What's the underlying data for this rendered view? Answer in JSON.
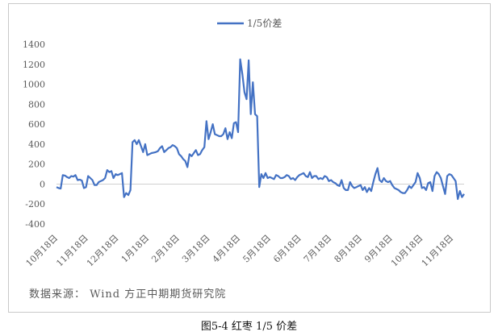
{
  "figure_caption": "图5-4 红枣 1/5 价差",
  "source_note": "数据来源： Wind 方正中期期货研究院",
  "chart_data": {
    "type": "line",
    "title": "",
    "xlabel": "",
    "ylabel": "",
    "ylim": [
      -400,
      1400
    ],
    "yticks": [
      -400,
      -200,
      0,
      200,
      400,
      600,
      800,
      1000,
      1200,
      1400
    ],
    "grid": false,
    "legend_position": "top-center",
    "xtick_labels": [
      "10月18日",
      "11月18日",
      "12月18日",
      "1月18日",
      "2月18日",
      "3月18日",
      "4月18日",
      "5月18日",
      "6月18日",
      "7月18日",
      "8月18日",
      "9月18日",
      "10月18日",
      "11月18日"
    ],
    "series": [
      {
        "name": "1/5价差",
        "color": "#4472C4",
        "values": [
          -30,
          -40,
          -45,
          90,
          85,
          70,
          60,
          80,
          75,
          90,
          40,
          45,
          35,
          -40,
          -30,
          80,
          60,
          40,
          -10,
          -10,
          20,
          30,
          40,
          60,
          140,
          120,
          130,
          60,
          100,
          90,
          100,
          110,
          -130,
          -90,
          -110,
          -60,
          420,
          440,
          400,
          440,
          380,
          320,
          400,
          290,
          300,
          310,
          315,
          320,
          330,
          360,
          380,
          320,
          340,
          360,
          370,
          390,
          380,
          360,
          300,
          280,
          250,
          230,
          170,
          300,
          280,
          310,
          340,
          290,
          300,
          340,
          370,
          630,
          450,
          520,
          600,
          500,
          490,
          480,
          480,
          500,
          560,
          450,
          520,
          460,
          610,
          620,
          520,
          1250,
          1100,
          920,
          850,
          1240,
          700,
          1020,
          700,
          680,
          -30,
          100,
          60,
          110,
          60,
          70,
          60,
          50,
          90,
          80,
          60,
          60,
          70,
          90,
          80,
          50,
          60,
          40,
          70,
          90,
          100,
          110,
          80,
          70,
          120,
          60,
          80,
          80,
          50,
          60,
          50,
          80,
          70,
          30,
          40,
          20,
          10,
          -10,
          -20,
          40,
          -40,
          -60,
          -60,
          20,
          -20,
          -40,
          -30,
          -20,
          -10,
          -60,
          -30,
          -80,
          -40,
          -70,
          20,
          100,
          160,
          40,
          20,
          60,
          30,
          20,
          30,
          -10,
          -40,
          -50,
          -60,
          -80,
          -90,
          -90,
          -60,
          -20,
          -40,
          -10,
          20,
          110,
          60,
          -40,
          -30,
          -60,
          10,
          20,
          -70,
          80,
          120,
          100,
          60,
          -20,
          -100,
          80,
          100,
          90,
          60,
          30,
          -150,
          -70,
          -130,
          -100
        ]
      }
    ]
  }
}
